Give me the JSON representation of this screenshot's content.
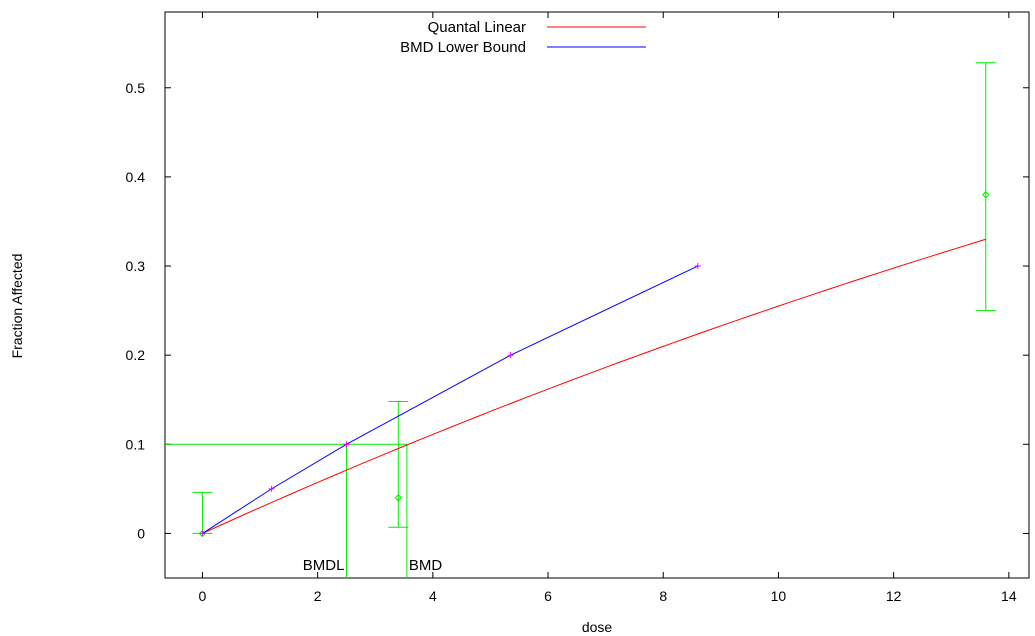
{
  "chart_data": {
    "type": "line",
    "xlabel": "dose",
    "ylabel": "Fraction Affected",
    "xlim": [
      -0.65,
      14.35
    ],
    "ylim": [
      -0.05,
      0.585
    ],
    "x_ticks": [
      0,
      2,
      4,
      6,
      8,
      10,
      12,
      14
    ],
    "y_ticks": [
      0,
      0.1,
      0.2,
      0.3,
      0.4,
      0.5
    ],
    "x_tick_labels": [
      "0",
      "2",
      "4",
      "6",
      "8",
      "10",
      "12",
      "14"
    ],
    "y_tick_labels": [
      "0",
      "0.1",
      "0.2",
      "0.3",
      "0.4",
      "0.5"
    ],
    "legend_position": "top-center",
    "series": [
      {
        "name": "Quantal Linear",
        "color": "#ff0000",
        "x": [
          0,
          13.6
        ],
        "y": [
          0,
          0.33
        ],
        "curve": "quantal-linear"
      },
      {
        "name": "BMD Lower Bound",
        "color": "#0000ff",
        "x": [
          0,
          1.2,
          2.5,
          5.35,
          8.6
        ],
        "y": [
          0,
          0.05,
          0.1,
          0.2,
          0.3
        ],
        "markers": "+",
        "marker_color": "#ff00ff"
      }
    ],
    "observed": {
      "color": "#00ee00",
      "points": [
        {
          "x": 0,
          "y": 0,
          "lower": 0,
          "upper": 0.046
        },
        {
          "x": 3.4,
          "y": 0.04,
          "lower": 0.007,
          "upper": 0.148
        },
        {
          "x": 13.6,
          "y": 0.38,
          "lower": 0.25,
          "upper": 0.528
        }
      ]
    },
    "bmr": 0.1,
    "bmdl": 2.5,
    "bmd": 3.55,
    "annotations": [
      "BMDL",
      "BMD"
    ]
  }
}
